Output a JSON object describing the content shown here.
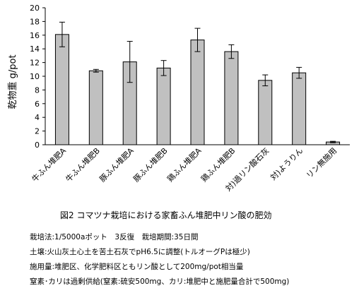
{
  "chart_data": {
    "type": "bar",
    "ylabel": "乾物重 g/pot",
    "ylim": [
      0,
      20
    ],
    "yticks": [
      0,
      2,
      4,
      6,
      8,
      10,
      12,
      14,
      16,
      18,
      20
    ],
    "categories": [
      "牛ふん堆肥A",
      "牛ふん堆肥B",
      "豚ふん堆肥A",
      "豚ふん堆肥B",
      "鶏ふん堆肥A",
      "鶏ふん堆肥B",
      "対)過リン酸石灰",
      "対)ようりん",
      "リン無施用"
    ],
    "values": [
      16.1,
      10.8,
      12.1,
      11.2,
      15.3,
      13.6,
      9.4,
      10.5,
      0.4
    ],
    "errors": [
      1.8,
      0.2,
      3.0,
      1.1,
      1.7,
      1.0,
      0.8,
      0.8,
      0.1
    ],
    "grid": false,
    "bar_color": "#c0c0c0"
  },
  "caption": "図2 コマツナ栽培における家畜ふん堆肥中リン酸の肥効",
  "notes": [
    "栽培法:1/5000aポット　3反復　栽培期間:35日間",
    "土壌:火山灰土心土を苦土石灰でpH6.5に調整(トルオーグPは極少)",
    "施用量:堆肥区、化学肥料区ともリン酸として200mg/pot相当量",
    "窒素･カリは過剰供給(窒素:硫安500mg、カリ:堆肥中と施肥量合計で500mg)"
  ]
}
